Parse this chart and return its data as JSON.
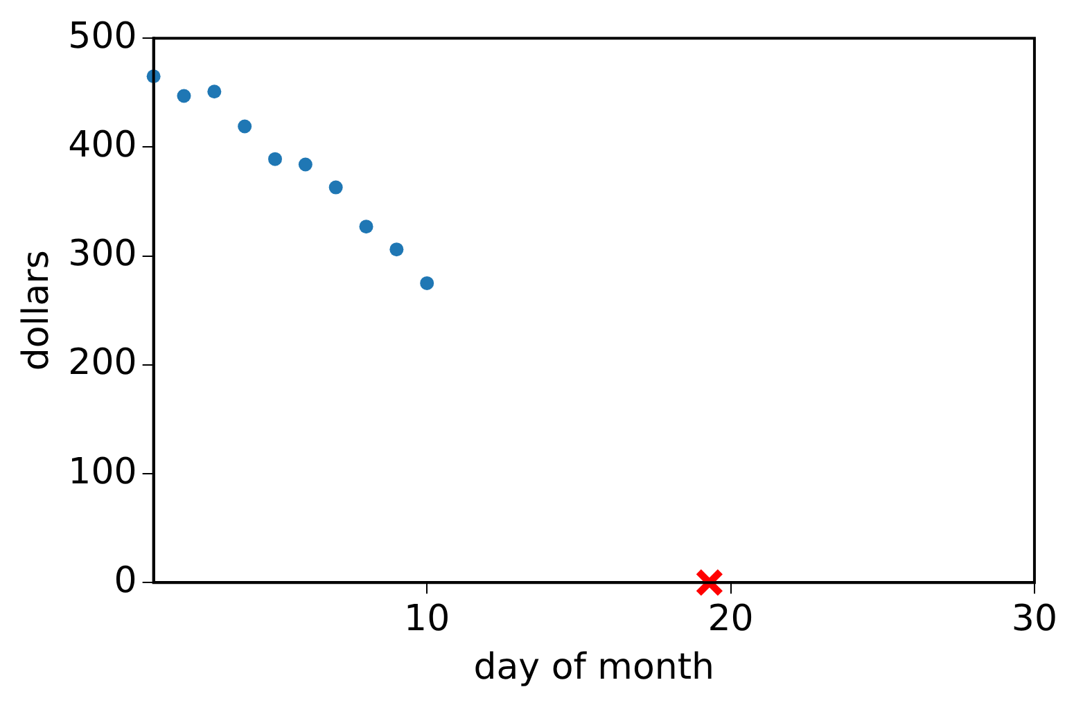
{
  "chart_data": {
    "type": "scatter",
    "xlabel": "day of month",
    "ylabel": "dollars",
    "x": [
      1,
      2,
      3,
      4,
      5,
      6,
      7,
      8,
      9,
      10
    ],
    "series": [
      {
        "color": "#1f77b4",
        "values": [
          465,
          447,
          451,
          419,
          389,
          384,
          363,
          327,
          306,
          275
        ]
      },
      {
        "color": "#ff0000",
        "marker": "cross",
        "x": [
          19.3
        ],
        "values": [
          0
        ]
      }
    ],
    "xlim": [
      1,
      30
    ],
    "xticks": [
      10,
      20,
      30
    ],
    "ylim": [
      0,
      500
    ],
    "yticks": [
      0,
      100,
      200,
      300,
      400,
      500
    ],
    "grid": false,
    "legend": false,
    "marker": "circle"
  }
}
